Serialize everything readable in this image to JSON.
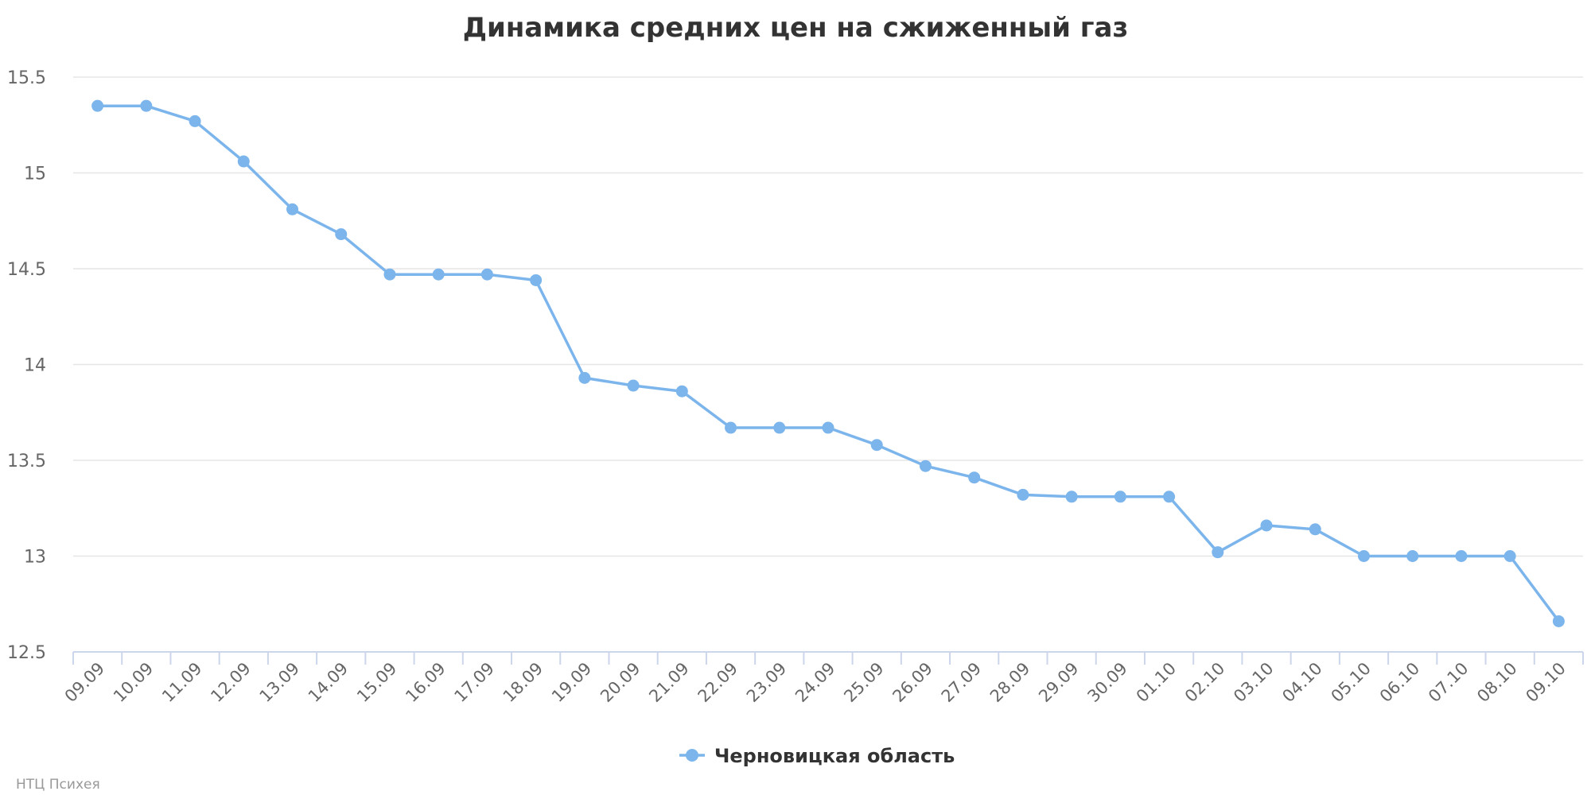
{
  "chart_data": {
    "type": "line",
    "title": "Динамика средних цен на сжиженный газ",
    "xlabel": "",
    "ylabel": "",
    "ylim": [
      12.5,
      15.5
    ],
    "yticks": [
      "12.5",
      "13",
      "13.5",
      "14",
      "14.5",
      "15",
      "15.5"
    ],
    "grid": true,
    "legend_position": "bottom-center",
    "categories": [
      "09.09",
      "10.09",
      "11.09",
      "12.09",
      "13.09",
      "14.09",
      "15.09",
      "16.09",
      "17.09",
      "18.09",
      "19.09",
      "20.09",
      "21.09",
      "22.09",
      "23.09",
      "24.09",
      "25.09",
      "26.09",
      "27.09",
      "28.09",
      "29.09",
      "30.09",
      "01.10",
      "02.10",
      "03.10",
      "04.10",
      "05.10",
      "06.10",
      "07.10",
      "08.10",
      "09.10"
    ],
    "series": [
      {
        "name": "Черновицкая область",
        "color": "#7cb5ec",
        "values": [
          15.35,
          15.35,
          15.27,
          15.06,
          14.81,
          14.68,
          14.47,
          14.47,
          14.47,
          14.44,
          13.93,
          13.89,
          13.86,
          13.67,
          13.67,
          13.67,
          13.58,
          13.47,
          13.41,
          13.32,
          13.31,
          13.31,
          13.31,
          13.02,
          13.16,
          13.14,
          13.0,
          13.0,
          13.0,
          13.0,
          12.66
        ]
      }
    ],
    "credit": "НТЦ Психея"
  }
}
